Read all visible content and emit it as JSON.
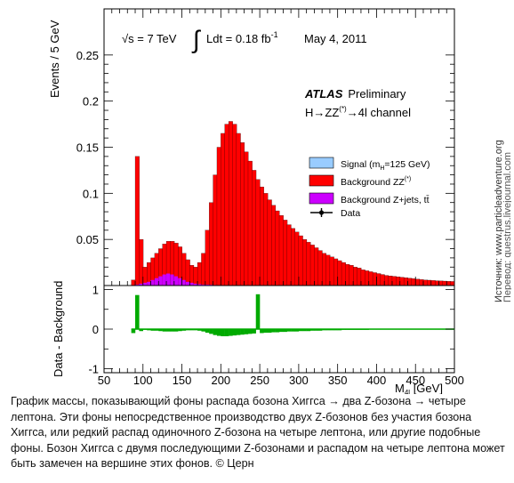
{
  "chart_data": [
    {
      "type": "bar",
      "panel": "main",
      "ylabel": "Events / 5 GeV",
      "xlim": [
        50,
        500
      ],
      "ylim": [
        0,
        0.3
      ],
      "yticks": [
        "0.05",
        "0.1",
        "0.15",
        "0.2",
        "0.25"
      ],
      "grid": false,
      "legend_position": "right",
      "annotations": {
        "energy": "√s = 7 TeV",
        "integral": "∫",
        "lumi": "Ldt = 0.18 fb",
        "lumi_exp": "-1",
        "date": "May  4, 2011",
        "experiment": "ATLAS",
        "status": "Preliminary",
        "channel": "H→ZZ",
        "channel_sup": "(*)",
        "channel_tail": "→4l channel"
      },
      "legend": [
        {
          "label": "Signal (m",
          "sub": "H",
          "tail": "=125 GeV)",
          "color": "#99ccff"
        },
        {
          "label": "Background ZZ",
          "sup": "(*)",
          "color": "#ff0000"
        },
        {
          "label": "Background Z+jets, tt̄",
          "color": "#cc00ff"
        },
        {
          "label": "Data",
          "marker": "data-point"
        }
      ],
      "x": [
        80,
        85,
        90,
        95,
        100,
        105,
        110,
        115,
        120,
        125,
        130,
        135,
        140,
        145,
        150,
        155,
        160,
        165,
        170,
        175,
        180,
        185,
        190,
        195,
        200,
        205,
        210,
        215,
        220,
        225,
        230,
        235,
        240,
        245,
        250,
        255,
        260,
        265,
        270,
        275,
        280,
        285,
        290,
        295,
        300,
        305,
        310,
        315,
        320,
        325,
        330,
        335,
        340,
        345,
        350,
        355,
        360,
        365,
        370,
        375,
        380,
        385,
        390,
        395,
        400,
        405,
        410,
        415,
        420,
        425,
        430,
        435,
        440,
        445,
        450,
        455,
        460,
        465,
        470,
        475,
        480,
        485,
        490,
        495
      ],
      "series": [
        {
          "name": "Background ZZ",
          "color": "#ff0000",
          "values": [
            0.0,
            0.006,
            0.14,
            0.05,
            0.02,
            0.025,
            0.03,
            0.035,
            0.04,
            0.045,
            0.048,
            0.048,
            0.046,
            0.042,
            0.035,
            0.028,
            0.022,
            0.02,
            0.025,
            0.035,
            0.06,
            0.09,
            0.12,
            0.15,
            0.165,
            0.175,
            0.178,
            0.175,
            0.165,
            0.155,
            0.145,
            0.135,
            0.125,
            0.115,
            0.107,
            0.1,
            0.093,
            0.087,
            0.081,
            0.076,
            0.071,
            0.066,
            0.062,
            0.058,
            0.054,
            0.05,
            0.047,
            0.044,
            0.041,
            0.038,
            0.035,
            0.033,
            0.031,
            0.029,
            0.027,
            0.025,
            0.023,
            0.022,
            0.02,
            0.019,
            0.017,
            0.016,
            0.015,
            0.014,
            0.013,
            0.012,
            0.011,
            0.0105,
            0.01,
            0.0095,
            0.009,
            0.0085,
            0.008,
            0.0075,
            0.007,
            0.0065,
            0.006,
            0.0058,
            0.0055,
            0.0052,
            0.005,
            0.0048,
            0.0046,
            0.0044
          ]
        },
        {
          "name": "Background Z+jets, tt̄",
          "color": "#cc00ff",
          "values": [
            0.0,
            0.0,
            0.001,
            0.002,
            0.003,
            0.004,
            0.006,
            0.008,
            0.01,
            0.012,
            0.013,
            0.012,
            0.01,
            0.008,
            0.006,
            0.004,
            0.003,
            0.002,
            0.0015,
            0.001,
            0.001,
            0.0008,
            0.0006,
            0.0005,
            0.0004,
            0.0003,
            0.0003,
            0.0002,
            0.0002,
            0.0002,
            0.0001,
            0.0001,
            0.0001,
            0.0001,
            0.0001,
            0.0001,
            0,
            0,
            0,
            0,
            0,
            0,
            0,
            0,
            0,
            0,
            0,
            0,
            0,
            0,
            0,
            0,
            0,
            0,
            0,
            0,
            0,
            0,
            0,
            0,
            0,
            0,
            0,
            0,
            0,
            0,
            0,
            0,
            0,
            0,
            0,
            0,
            0,
            0,
            0,
            0,
            0,
            0,
            0,
            0,
            0,
            0,
            0,
            0
          ]
        }
      ]
    },
    {
      "type": "bar",
      "panel": "ratio",
      "xlabel": "M",
      "xlabel_sub": "4l",
      "xlabel_unit": " [GeV]",
      "ylabel": "Data - Background",
      "xlim": [
        50,
        500
      ],
      "ylim": [
        -1.1,
        1.1
      ],
      "yticks": [
        "-1",
        "0",
        "1"
      ],
      "xticks": [
        "50",
        "100",
        "150",
        "200",
        "250",
        "300",
        "350",
        "400",
        "450",
        "500"
      ],
      "x": [
        85,
        90,
        95,
        100,
        105,
        110,
        115,
        120,
        125,
        130,
        135,
        140,
        145,
        150,
        155,
        160,
        165,
        170,
        175,
        180,
        185,
        190,
        195,
        200,
        205,
        210,
        215,
        220,
        225,
        230,
        235,
        240,
        245,
        250,
        255,
        260,
        265,
        270,
        275,
        280,
        285,
        290,
        295,
        300,
        305,
        310,
        315,
        320,
        325,
        330,
        335,
        340,
        345,
        350,
        355,
        360,
        365,
        370,
        375,
        380,
        385,
        390,
        395,
        400,
        405,
        410,
        415,
        420,
        425,
        430,
        435,
        440,
        445,
        450,
        455,
        460,
        465,
        470,
        475,
        480,
        485,
        490,
        495
      ],
      "series": [
        {
          "name": "",
          "color": "#00aa00",
          "values": [
            -0.1,
            0.86,
            -0.05,
            -0.02,
            -0.03,
            -0.04,
            -0.04,
            -0.05,
            -0.06,
            -0.06,
            -0.06,
            -0.06,
            -0.05,
            -0.04,
            -0.03,
            -0.03,
            -0.03,
            -0.04,
            -0.06,
            -0.09,
            -0.12,
            -0.15,
            -0.17,
            -0.18,
            -0.18,
            -0.17,
            -0.16,
            -0.15,
            -0.14,
            -0.13,
            -0.12,
            -0.11,
            0.88,
            -0.1,
            -0.09,
            -0.09,
            -0.08,
            -0.08,
            -0.07,
            -0.07,
            -0.06,
            -0.06,
            -0.06,
            -0.05,
            -0.05,
            -0.05,
            -0.04,
            -0.04,
            -0.04,
            -0.03,
            -0.03,
            -0.03,
            -0.03,
            -0.03,
            -0.02,
            -0.02,
            -0.02,
            -0.02,
            -0.02,
            -0.02,
            -0.02,
            -0.01,
            -0.01,
            -0.01,
            -0.01,
            -0.01,
            -0.01,
            -0.01,
            -0.01,
            -0.01,
            -0.01,
            -0.01,
            -0.01,
            -0.01,
            -0.01,
            -0.01,
            -0.01,
            -0.01,
            -0.01,
            -0.01,
            -0.01,
            -0.01,
            -0.01
          ]
        }
      ]
    }
  ],
  "side_note": {
    "line1": "Источник: www.particleadventure.org",
    "line2": "Перевод: questrus.livejournal.com"
  },
  "caption": "График массы, показывающий фоны распада бозона Хиггса → два Z-бозона → четыре лептона. Эти фоны непосредственное производство двух Z-бозонов без участия бозона Хиггса, или редкий распад одиночного Z-бозона на четыре лептона, или другие подобные фоны. Бозон Хиггса с двумя последующими Z-бозонами и распадом на четыре лептона может  быть замечен на вершине этих фонов. © Церн"
}
